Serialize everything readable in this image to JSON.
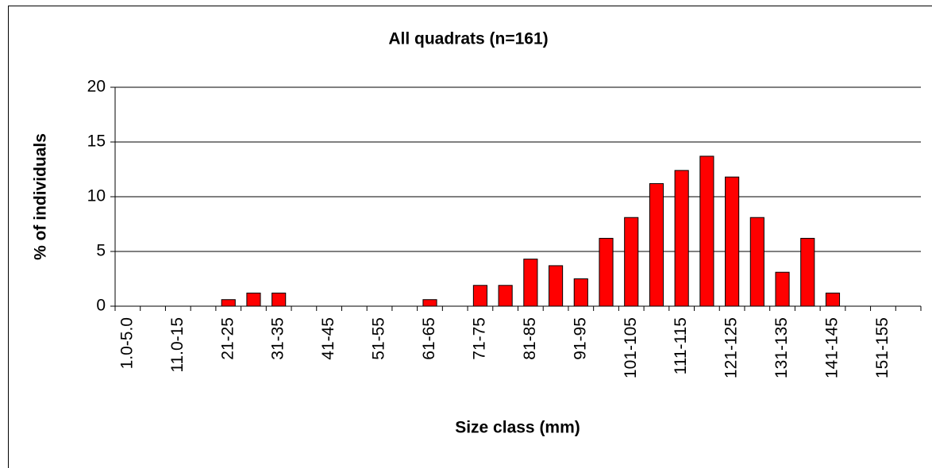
{
  "chart_data": {
    "type": "bar",
    "title": "All quadrats (n=161)",
    "x_label": "Size class (mm)",
    "y_label": "% of individuals",
    "categories": [
      "1.0-5.0",
      null,
      "11.0-15",
      null,
      "21-25",
      null,
      "31-35",
      null,
      "41-45",
      null,
      "51-55",
      null,
      "61-65",
      null,
      "71-75",
      null,
      "81-85",
      null,
      "91-95",
      null,
      "101-105",
      null,
      "111-115",
      null,
      "121-125",
      null,
      "131-135",
      null,
      "141-145",
      null,
      "151-155",
      null
    ],
    "values": [
      0,
      0,
      0,
      0,
      0.6,
      1.2,
      1.2,
      0,
      0,
      0,
      0,
      0,
      0.6,
      0,
      1.9,
      1.9,
      4.3,
      3.7,
      2.5,
      6.2,
      8.1,
      11.2,
      12.4,
      13.7,
      11.8,
      8.1,
      3.1,
      6.2,
      1.2,
      0,
      0,
      0
    ],
    "color": "#ff0000",
    "ylim": [
      0,
      20
    ],
    "yticks": [
      0,
      5,
      10,
      15,
      20
    ],
    "grid": true
  }
}
